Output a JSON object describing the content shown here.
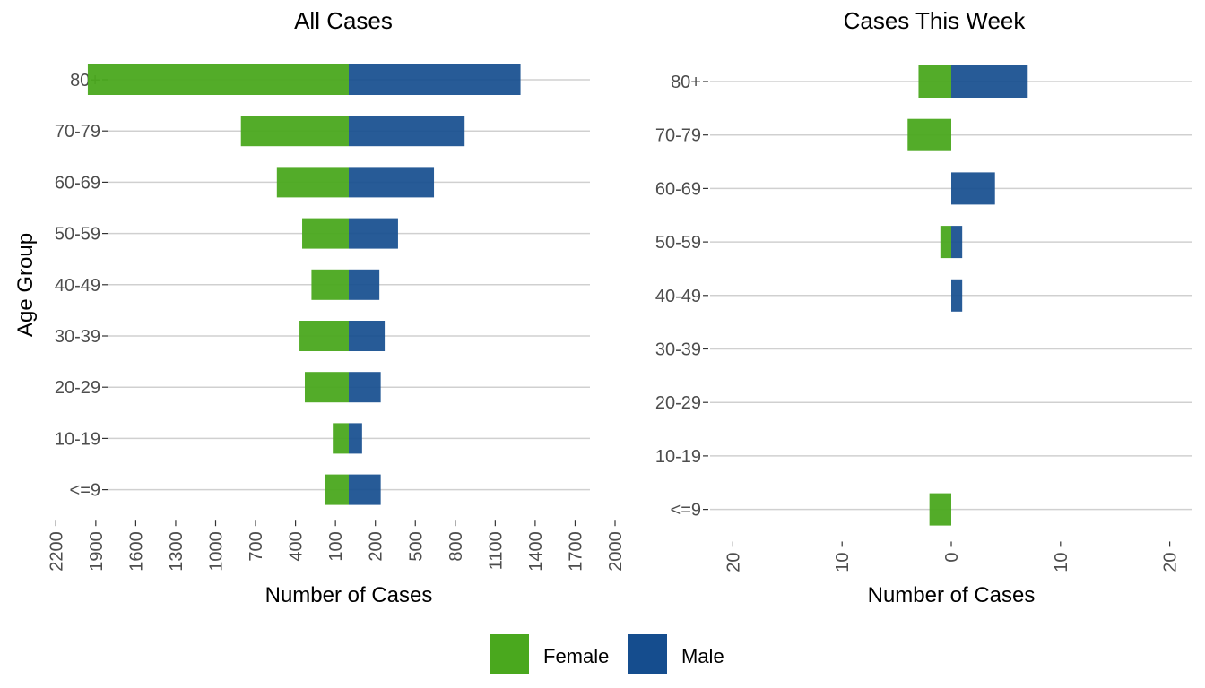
{
  "colors": {
    "female": "#4aa81e",
    "male": "#154d8e",
    "grid": "#d0d0d0",
    "text": "#4d4d4d"
  },
  "legend": {
    "female_label": "Female",
    "male_label": "Male"
  },
  "ylabel": "Age Group",
  "chart_data": [
    {
      "type": "bar",
      "orientation": "horizontal-diverging",
      "title": "All Cases",
      "xlabel": "Number of Cases",
      "ylabel": "Age Group",
      "categories": [
        "80+",
        "70-79",
        "60-69",
        "50-59",
        "40-49",
        "30-39",
        "20-29",
        "10-19",
        "<=9"
      ],
      "series": [
        {
          "name": "Female",
          "values": [
            1960,
            810,
            540,
            350,
            280,
            370,
            330,
            120,
            180
          ]
        },
        {
          "name": "Male",
          "values": [
            1290,
            870,
            640,
            370,
            230,
            270,
            240,
            100,
            240
          ]
        }
      ],
      "xticks": [
        -2200,
        -1900,
        -1600,
        -1300,
        -1000,
        -700,
        -400,
        -100,
        200,
        500,
        800,
        1100,
        1400,
        1700,
        2000
      ],
      "xtick_labels": [
        "2200",
        "1900",
        "1600",
        "1300",
        "1000",
        "700",
        "400",
        "100",
        "200",
        "500",
        "800",
        "1100",
        "1400",
        "1700",
        "2000"
      ],
      "xlim": [
        -2290,
        2290
      ],
      "grid": "horizontal",
      "legend": "bottom"
    },
    {
      "type": "bar",
      "orientation": "horizontal-diverging",
      "title": "Cases This Week",
      "xlabel": "Number of Cases",
      "categories": [
        "80+",
        "70-79",
        "60-69",
        "50-59",
        "40-49",
        "30-39",
        "20-29",
        "10-19",
        "<=9"
      ],
      "series": [
        {
          "name": "Female",
          "values": [
            3,
            4,
            0,
            1,
            0,
            0,
            0,
            0,
            2
          ]
        },
        {
          "name": "Male",
          "values": [
            7,
            0,
            4,
            1,
            1,
            0,
            0,
            0,
            0
          ]
        }
      ],
      "xticks": [
        -20,
        -10,
        0,
        10,
        20
      ],
      "xtick_labels": [
        "20",
        "10",
        "0",
        "10",
        "20"
      ],
      "xlim": [
        -21,
        21
      ],
      "grid": "horizontal",
      "legend": "bottom"
    }
  ]
}
